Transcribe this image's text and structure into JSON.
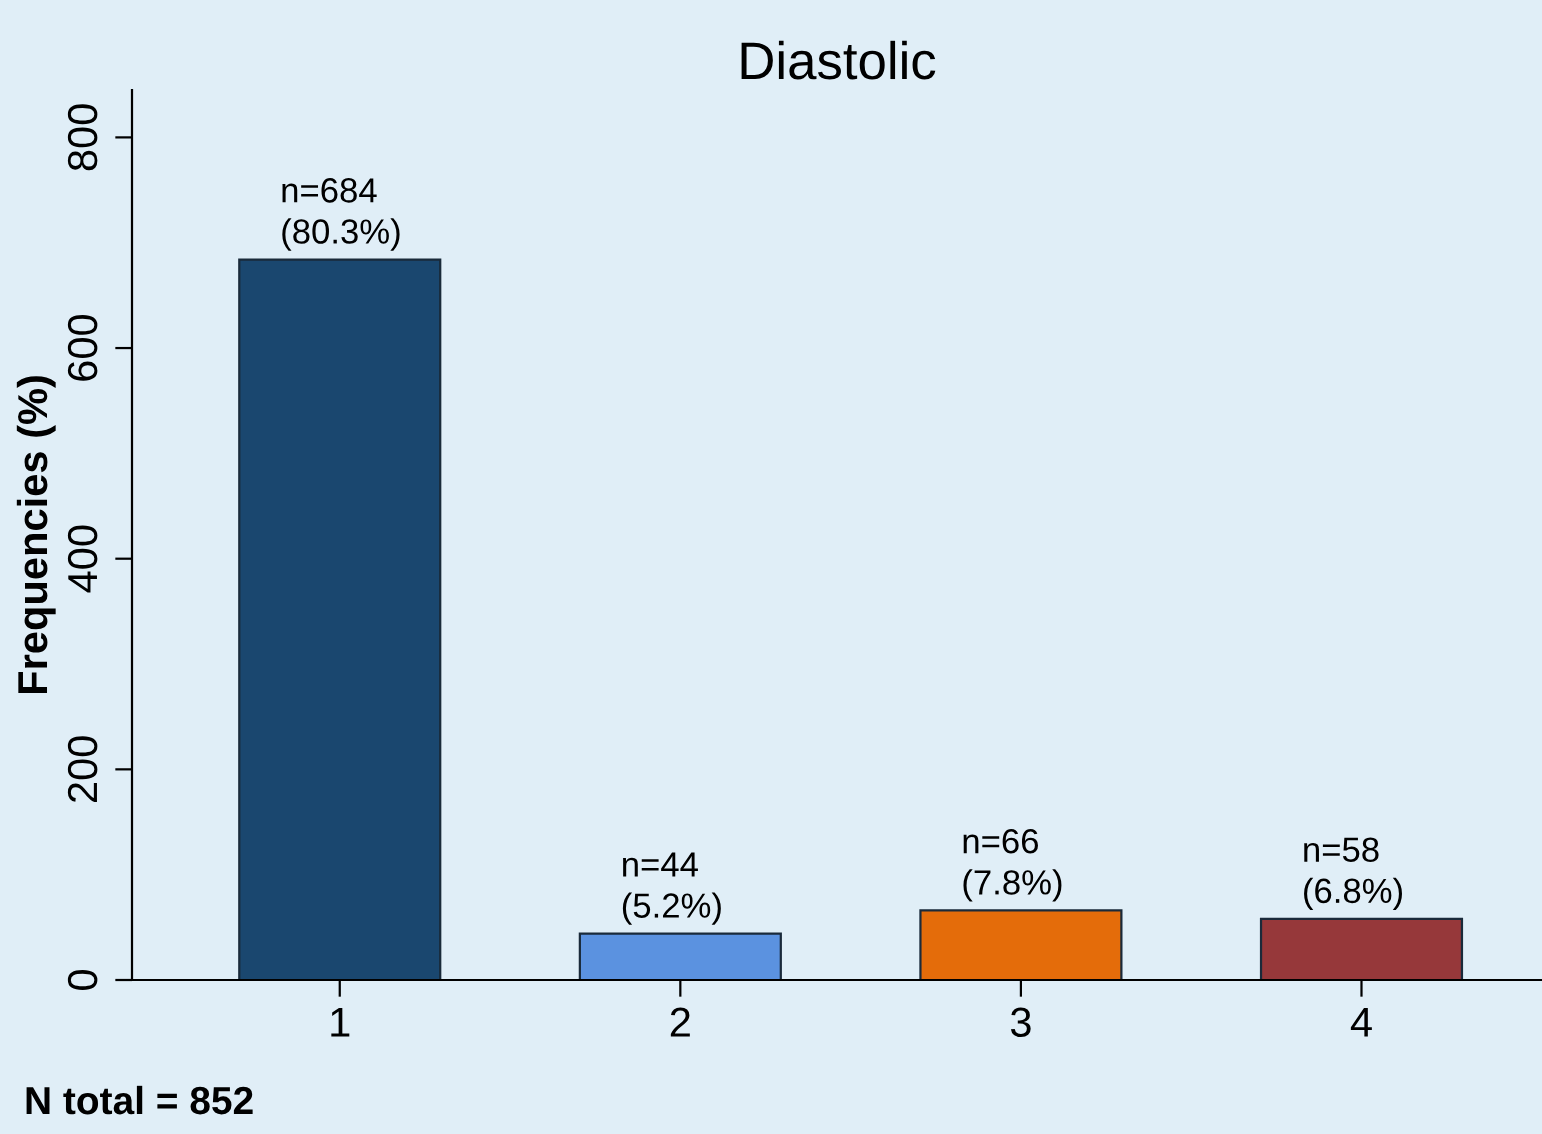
{
  "chart_data": {
    "type": "bar",
    "title": "Diastolic",
    "ylabel": "Frequencies (%)",
    "categories": [
      "1",
      "2",
      "3",
      "4"
    ],
    "values": [
      684,
      44,
      66,
      58
    ],
    "colors": [
      "#1a476f",
      "#5b92e0",
      "#e46c0a",
      "#96383a"
    ],
    "value_labels": [
      "n=684\n(80.3%)",
      "n=44\n(5.2%)",
      "n=66\n(7.8%)",
      "n=58\n(6.8%)"
    ],
    "ylim": [
      0,
      845
    ],
    "yticks": [
      0,
      200,
      400,
      600,
      800
    ],
    "grid": false,
    "legend": false,
    "annotations": [
      "N total = 852"
    ]
  }
}
